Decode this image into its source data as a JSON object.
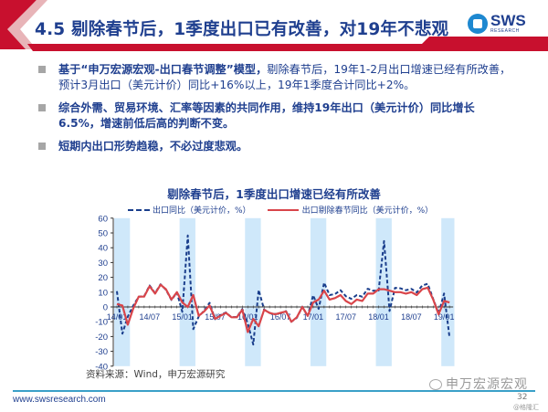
{
  "header": {
    "title": "4.5 剔除春节后，1季度出口已有改善，对19年不悲观",
    "logo_text": "SWS",
    "logo_subtext": "RESEARCH",
    "accent_color": "#c8102e",
    "title_color": "#1f3f8f"
  },
  "bullets": [
    {
      "bold": "基于“申万宏源宏观-出口春节调整”模型，",
      "text": "剔除春节后，19年1-2月出口增速已经有所改善，预计3月出口（美元计价）同比+16%以上，19年1季度合计同比+2%。"
    },
    {
      "bold": "综合外需、贸易环境、汇率等因素的共同作用，维持19年出口（美元计价）同比增长6.5%，增速前低后高的判断不变。",
      "text": ""
    },
    {
      "bold": "短期内出口形势趋稳，不必过度悲观。",
      "text": ""
    }
  ],
  "chart": {
    "title": "剔除春节后，1季度出口增速已经有所改善",
    "legend": [
      "出口同比（美元计价，%）",
      "出口剔除春节同比（美元计价，%）"
    ],
    "source": "资料来源：Wind，申万宏源研究"
  },
  "chart_data": {
    "type": "line",
    "title": "剔除春节后，1季度出口增速已经有所改善",
    "xlabel": "",
    "ylabel": "",
    "ylim": [
      -40,
      60
    ],
    "yticks": [
      -40,
      -30,
      -20,
      -10,
      0,
      10,
      20,
      30,
      40,
      50,
      60
    ],
    "xtick_labels": [
      "14/01",
      "14/07",
      "15/01",
      "15/07",
      "16/01",
      "16/07",
      "17/01",
      "17/07",
      "18/01",
      "18/07",
      "19/01"
    ],
    "shaded_periods": [
      "14/01-14/03",
      "15/01-15/03",
      "16/01-16/03",
      "17/01-17/03",
      "18/01-18/03",
      "19/01-19/02"
    ],
    "x": [
      "14/01",
      "14/02",
      "14/03",
      "14/04",
      "14/05",
      "14/06",
      "14/07",
      "14/08",
      "14/09",
      "14/10",
      "14/11",
      "14/12",
      "15/01",
      "15/02",
      "15/03",
      "15/04",
      "15/05",
      "15/06",
      "15/07",
      "15/08",
      "15/09",
      "15/10",
      "15/11",
      "15/12",
      "16/01",
      "16/02",
      "16/03",
      "16/04",
      "16/05",
      "16/06",
      "16/07",
      "16/08",
      "16/09",
      "16/10",
      "16/11",
      "16/12",
      "17/01",
      "17/02",
      "17/03",
      "17/04",
      "17/05",
      "17/06",
      "17/07",
      "17/08",
      "17/09",
      "17/10",
      "17/11",
      "17/12",
      "18/01",
      "18/02",
      "18/03",
      "18/04",
      "18/05",
      "18/06",
      "18/07",
      "18/08",
      "18/09",
      "18/10",
      "18/11",
      "18/12",
      "19/01",
      "19/02"
    ],
    "series": [
      {
        "name": "出口同比（美元计价，%）",
        "style": "dashed",
        "color": "#1a3e8c",
        "values": [
          10.6,
          -18.1,
          -6.6,
          0.9,
          7.0,
          7.2,
          14.5,
          9.4,
          15.3,
          11.6,
          4.7,
          9.7,
          -3.3,
          48.3,
          -15.0,
          -6.4,
          -2.5,
          2.8,
          -8.3,
          -5.5,
          -3.7,
          -6.9,
          -6.8,
          -1.4,
          -11.2,
          -25.4,
          11.5,
          -1.8,
          -4.1,
          -4.8,
          -4.4,
          -2.8,
          -10.0,
          -7.3,
          0.1,
          -6.1,
          7.9,
          -1.3,
          16.4,
          8.0,
          8.7,
          11.3,
          7.2,
          5.5,
          8.1,
          6.9,
          12.3,
          10.9,
          11.1,
          44.5,
          -2.7,
          12.9,
          12.6,
          11.3,
          12.2,
          9.8,
          14.5,
          15.6,
          5.4,
          -4.4,
          9.1,
          -20.7
        ]
      },
      {
        "name": "出口剔除春节同比（美元计价，%）",
        "style": "solid",
        "color": "#d9454a",
        "values": [
          2,
          1,
          -12,
          -1,
          7,
          7,
          14,
          9,
          15,
          12,
          5,
          10,
          3,
          0,
          8,
          -6,
          -3,
          1,
          -8,
          -6,
          -4,
          -7,
          -7,
          -2,
          -17,
          -8,
          -13,
          -2,
          -4,
          -5,
          -4,
          -3,
          -10,
          -7,
          0,
          -6,
          3,
          5,
          11,
          5,
          6,
          8,
          4,
          2,
          5,
          4,
          9,
          9,
          12,
          12,
          11,
          10,
          10,
          9,
          10,
          8,
          12,
          13,
          5,
          -5,
          4,
          3
        ]
      }
    ]
  },
  "footer": {
    "url": "www.swsresearch.com",
    "page": "32",
    "watermark": "申万宏源宏观",
    "watermark2": "@格隆汇"
  }
}
